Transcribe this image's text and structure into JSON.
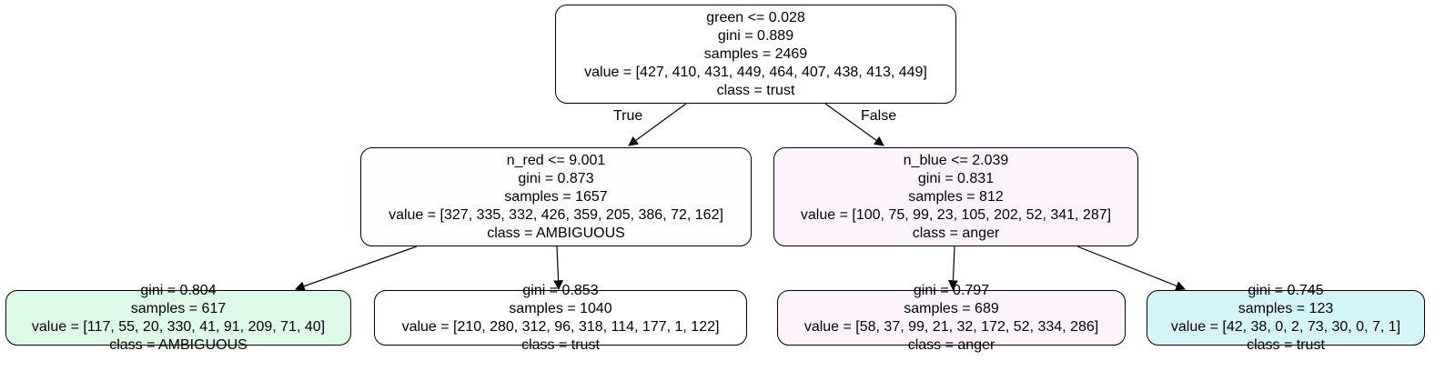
{
  "tree": {
    "root": {
      "fill": "#ffffff",
      "lines": [
        "green <= 0.028",
        "gini = 0.889",
        "samples = 2469",
        "value = [427, 410, 431, 449, 464, 407, 438, 413, 449]",
        "class = trust"
      ]
    },
    "left": {
      "fill": "#fcfffe",
      "lines": [
        "n_red <= 9.001",
        "gini = 0.873",
        "samples = 1657",
        "value = [327, 335, 332, 426, 359, 205, 386, 72, 162]",
        "class = AMBIGUOUS"
      ]
    },
    "right": {
      "fill": "#fdf4fb",
      "lines": [
        "n_blue <= 2.039",
        "gini = 0.831",
        "samples = 812",
        "value = [100, 75, 99, 23, 105, 202, 52, 341, 287]",
        "class = anger"
      ]
    },
    "leaf_ll": {
      "fill": "#ddfae9",
      "lines": [
        "gini = 0.804",
        "samples = 617",
        "value = [117, 55, 20, 330, 41, 91, 209, 71, 40]",
        "class = AMBIGUOUS"
      ]
    },
    "leaf_lr": {
      "fill": "#ffffff",
      "lines": [
        "gini = 0.853",
        "samples = 1040",
        "value = [210, 280, 312, 96, 318, 114, 177, 1, 122]",
        "class = trust"
      ]
    },
    "leaf_rl": {
      "fill": "#fdf4fb",
      "lines": [
        "gini = 0.797",
        "samples = 689",
        "value = [58, 37, 99, 21, 32, 172, 52, 334, 286]",
        "class = anger"
      ]
    },
    "leaf_rr": {
      "fill": "#d4f5f8",
      "lines": [
        "gini = 0.745",
        "samples = 123",
        "value = [42, 38, 0, 2, 73, 30, 0, 7, 1]",
        "class = trust"
      ]
    }
  },
  "edge_labels": {
    "true": "True",
    "false": "False"
  }
}
